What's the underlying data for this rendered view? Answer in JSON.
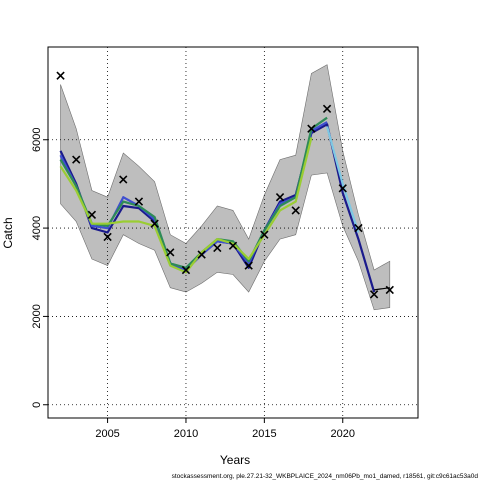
{
  "chart_data": {
    "type": "line",
    "xlabel": "Years",
    "ylabel": "Catch",
    "xlim": [
      2001.2,
      2024.8
    ],
    "ylim": [
      -300,
      8100
    ],
    "x_ticks": [
      2005,
      2010,
      2015,
      2020
    ],
    "y_ticks": [
      0,
      2000,
      4000,
      6000
    ],
    "grid": true,
    "footer": "stockassessment.org, ple.27.21-32_WKBPLAICE_2024_nm06Pb_mo1_damed, r18561, git:c9c61ac53a0d",
    "band": {
      "x": [
        2002,
        2003,
        2004,
        2005,
        2006,
        2007,
        2008,
        2009,
        2010,
        2011,
        2012,
        2013,
        2014,
        2015,
        2016,
        2017,
        2018,
        2019,
        2020,
        2021,
        2022,
        2023
      ],
      "lower": [
        4550,
        4150,
        3300,
        3150,
        3850,
        3650,
        3500,
        2650,
        2550,
        2750,
        3000,
        2950,
        2550,
        3250,
        3750,
        3850,
        5200,
        5250,
        4050,
        3250,
        2150,
        2200
      ],
      "upper": [
        7250,
        6250,
        4850,
        4700,
        5700,
        5400,
        5050,
        3850,
        3650,
        4050,
        4500,
        4400,
        3750,
        4750,
        5550,
        5650,
        7500,
        7700,
        5750,
        4300,
        3050,
        3250
      ]
    },
    "observations": {
      "x": [
        2002,
        2003,
        2004,
        2005,
        2006,
        2007,
        2008,
        2009,
        2010,
        2011,
        2012,
        2013,
        2014,
        2015,
        2016,
        2017,
        2018,
        2019,
        2020,
        2021,
        2022,
        2023
      ],
      "y": [
        7450,
        5550,
        4300,
        3800,
        5100,
        4600,
        4100,
        3450,
        3050,
        3400,
        3550,
        3600,
        3150,
        3850,
        4700,
        4400,
        6250,
        6700,
        4900,
        4000,
        2500,
        2600
      ]
    },
    "series": [
      {
        "color": "#1a1a8c",
        "x": [
          2002,
          2003,
          2004,
          2005,
          2006,
          2007,
          2008,
          2009,
          2010,
          2011,
          2012,
          2013,
          2014,
          2015,
          2016,
          2017,
          2018,
          2019,
          2020,
          2021,
          2022
        ],
        "y": [
          5750,
          5000,
          4000,
          3900,
          4500,
          4450,
          4150,
          3200,
          3050,
          3400,
          3700,
          3650,
          3100,
          3950,
          4600,
          4750,
          6150,
          6350,
          4800,
          3750,
          2550
        ]
      },
      {
        "color": "#3f4fd0",
        "x": [
          2002,
          2003,
          2004,
          2005,
          2006,
          2007,
          2008,
          2009,
          2010,
          2011,
          2012,
          2013,
          2014,
          2015,
          2016,
          2017,
          2018,
          2019
        ],
        "y": [
          5650,
          4950,
          4050,
          4000,
          4700,
          4500,
          4200,
          3200,
          3050,
          3400,
          3700,
          3650,
          3200,
          3950,
          4550,
          4700,
          6200,
          6400
        ]
      },
      {
        "color": "#2e8b57",
        "x": [
          2002,
          2003,
          2004,
          2005,
          2006,
          2007,
          2008,
          2009,
          2010,
          2011,
          2012,
          2013,
          2014,
          2015,
          2016,
          2017,
          2018,
          2019
        ],
        "y": [
          5550,
          4950,
          4100,
          4050,
          4600,
          4500,
          4250,
          3200,
          3100,
          3450,
          3750,
          3700,
          3250,
          3950,
          4500,
          4700,
          6250,
          6500
        ]
      },
      {
        "color": "#9acd32",
        "x": [
          2002,
          2003,
          2004,
          2005,
          2006,
          2007,
          2008,
          2009,
          2010,
          2011,
          2012,
          2013,
          2014,
          2015,
          2016,
          2017,
          2018
        ],
        "y": [
          5400,
          4850,
          4100,
          4100,
          4150,
          4150,
          4050,
          3150,
          3000,
          3450,
          3750,
          3650,
          3300,
          3850,
          4400,
          4600,
          6050
        ]
      },
      {
        "color": "#7ec8e3",
        "x": [
          2019,
          2020,
          2021
        ],
        "y": [
          6300,
          5000,
          3900
        ]
      }
    ],
    "tail": {
      "color": "#000000",
      "x": [
        2022,
        2023
      ],
      "y": [
        2600,
        2650
      ]
    }
  }
}
